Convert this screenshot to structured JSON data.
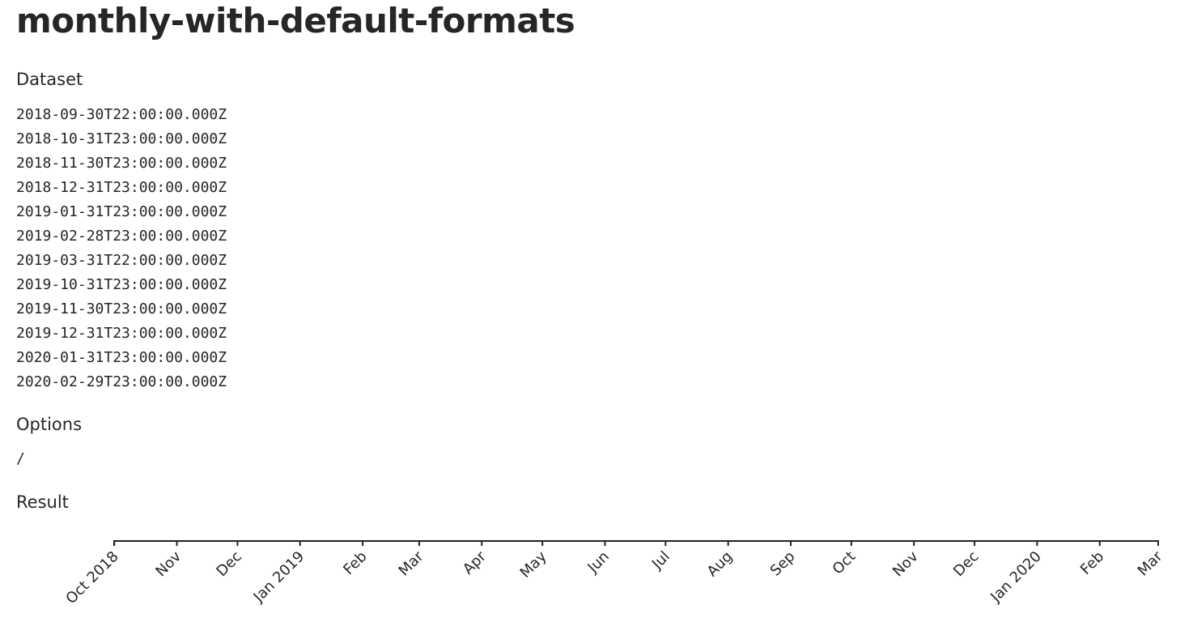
{
  "page": {
    "title": "monthly-with-default-formats"
  },
  "dataset": {
    "heading": "Dataset",
    "items": [
      "2018-09-30T22:00:00.000Z",
      "2018-10-31T23:00:00.000Z",
      "2018-11-30T23:00:00.000Z",
      "2018-12-31T23:00:00.000Z",
      "2019-01-31T23:00:00.000Z",
      "2019-02-28T23:00:00.000Z",
      "2019-03-31T22:00:00.000Z",
      "2019-10-31T23:00:00.000Z",
      "2019-11-30T23:00:00.000Z",
      "2019-12-31T23:00:00.000Z",
      "2020-01-31T23:00:00.000Z",
      "2020-02-29T23:00:00.000Z"
    ]
  },
  "options": {
    "heading": "Options",
    "value": "/"
  },
  "result": {
    "heading": "Result"
  },
  "chart_data": {
    "type": "axis",
    "axis": "x",
    "orientation": "bottom",
    "scale": "time",
    "domain": [
      "2018-09-30T22:00:00.000Z",
      "2020-02-29T23:00:00.000Z"
    ],
    "ticks": [
      {
        "date": "2018-10-01",
        "label": "Oct 2018"
      },
      {
        "date": "2018-11-01",
        "label": "Nov"
      },
      {
        "date": "2018-12-01",
        "label": "Dec"
      },
      {
        "date": "2019-01-01",
        "label": "Jan 2019"
      },
      {
        "date": "2019-02-01",
        "label": "Feb"
      },
      {
        "date": "2019-03-01",
        "label": "Mar"
      },
      {
        "date": "2019-04-01",
        "label": "Apr"
      },
      {
        "date": "2019-05-01",
        "label": "May"
      },
      {
        "date": "2019-06-01",
        "label": "Jun"
      },
      {
        "date": "2019-07-01",
        "label": "Jul"
      },
      {
        "date": "2019-08-01",
        "label": "Aug"
      },
      {
        "date": "2019-09-01",
        "label": "Sep"
      },
      {
        "date": "2019-10-01",
        "label": "Oct"
      },
      {
        "date": "2019-11-01",
        "label": "Nov"
      },
      {
        "date": "2019-12-01",
        "label": "Dec"
      },
      {
        "date": "2020-01-01",
        "label": "Jan 2020"
      },
      {
        "date": "2020-02-01",
        "label": "Feb"
      },
      {
        "date": "2020-03-01",
        "label": "Mar"
      }
    ],
    "tick_label_rotation_deg": -45,
    "axis_color": "#222222"
  }
}
